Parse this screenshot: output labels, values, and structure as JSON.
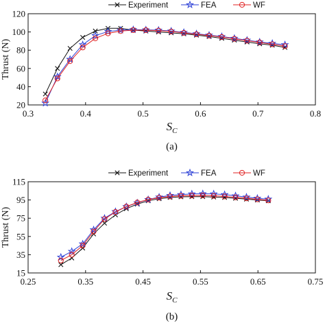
{
  "chart_data": [
    {
      "type": "line",
      "caption": "(a)",
      "xlabel": "S",
      "xlabel_sub": "C",
      "ylabel": "Thrust (N)",
      "xlim": [
        0.3,
        0.8
      ],
      "ylim": [
        20,
        120
      ],
      "xticks": [
        "0.3",
        "0.4",
        "0.5",
        "0.6",
        "0.7",
        "0.8"
      ],
      "yticks": [
        "20",
        "40",
        "60",
        "80",
        "100",
        "120"
      ],
      "legend_position": "top-center",
      "grid": false,
      "series": [
        {
          "name": "Experiment",
          "color": "#111111",
          "marker": "x",
          "x": [
            0.33,
            0.351,
            0.373,
            0.395,
            0.417,
            0.439,
            0.461,
            0.483,
            0.505,
            0.527,
            0.549,
            0.571,
            0.593,
            0.615,
            0.637,
            0.659,
            0.681,
            0.703,
            0.725,
            0.747
          ],
          "y": [
            32,
            60,
            82,
            94,
            101,
            104,
            104,
            102,
            101,
            100,
            99,
            98,
            96.5,
            95,
            93,
            91,
            89,
            87,
            85.5,
            83
          ]
        },
        {
          "name": "FEA",
          "color": "#2b3fd6",
          "marker": "star",
          "x": [
            0.33,
            0.351,
            0.373,
            0.395,
            0.417,
            0.439,
            0.461,
            0.483,
            0.505,
            0.527,
            0.549,
            0.571,
            0.593,
            0.615,
            0.637,
            0.659,
            0.681,
            0.703,
            0.725,
            0.747
          ],
          "y": [
            22,
            51,
            70,
            86,
            96,
            100.5,
            102,
            102.5,
            102.3,
            102,
            101,
            99.5,
            98,
            96.5,
            95,
            93,
            91,
            89,
            87.5,
            86
          ]
        },
        {
          "name": "WF",
          "color": "#e02020",
          "marker": "circle",
          "x": [
            0.33,
            0.351,
            0.373,
            0.395,
            0.417,
            0.439,
            0.461,
            0.483,
            0.505,
            0.527,
            0.549,
            0.571,
            0.593,
            0.615,
            0.637,
            0.659,
            0.681,
            0.703,
            0.725,
            0.747
          ],
          "y": [
            25,
            49,
            68,
            83,
            93,
            98.5,
            101,
            102,
            102,
            101.5,
            100.5,
            99,
            97.5,
            96,
            94.5,
            92.5,
            90.5,
            88.5,
            86.5,
            84.5
          ]
        }
      ]
    },
    {
      "type": "line",
      "caption": "(b)",
      "xlabel": "S",
      "xlabel_sub": "C",
      "ylabel": "Thrust (N)",
      "xlim": [
        0.25,
        0.75
      ],
      "ylim": [
        15,
        125
      ],
      "xticks": [
        "0.25",
        "0.35",
        "0.45",
        "0.55",
        "0.65",
        "0.75"
      ],
      "yticks": [
        "15",
        "35",
        "55",
        "75",
        "95",
        "115"
      ],
      "legend_position": "top-center",
      "grid": false,
      "series": [
        {
          "name": "Experiment",
          "color": "#111111",
          "marker": "x",
          "x": [
            0.307,
            0.326,
            0.345,
            0.364,
            0.383,
            0.402,
            0.421,
            0.44,
            0.459,
            0.478,
            0.497,
            0.516,
            0.535,
            0.554,
            0.573,
            0.592,
            0.611,
            0.63,
            0.649,
            0.668
          ],
          "y": [
            25,
            33,
            45,
            62,
            75,
            85,
            92.5,
            98,
            102,
            104.5,
            106,
            106.8,
            107,
            107,
            106.5,
            106,
            105,
            104,
            103,
            102
          ]
        },
        {
          "name": "FEA",
          "color": "#2b3fd6",
          "marker": "star",
          "x": [
            0.307,
            0.326,
            0.345,
            0.364,
            0.383,
            0.402,
            0.421,
            0.44,
            0.459,
            0.478,
            0.497,
            0.516,
            0.535,
            0.554,
            0.573,
            0.592,
            0.611,
            0.63,
            0.649,
            0.668
          ],
          "y": [
            34,
            41,
            50,
            67,
            81,
            89,
            95,
            99.5,
            103.5,
            106.5,
            108.5,
            109.5,
            110.3,
            110.5,
            110.3,
            109.5,
            108,
            106.5,
            105,
            104
          ]
        },
        {
          "name": "WF",
          "color": "#e02020",
          "marker": "circle",
          "x": [
            0.307,
            0.326,
            0.345,
            0.364,
            0.383,
            0.402,
            0.421,
            0.44,
            0.459,
            0.478,
            0.497,
            0.516,
            0.535,
            0.554,
            0.573,
            0.592,
            0.611,
            0.63,
            0.649,
            0.668
          ],
          "y": [
            30,
            37,
            48,
            65,
            80,
            88.5,
            95,
            100,
            103.5,
            105.8,
            107.2,
            108,
            108.4,
            108.5,
            108,
            107.3,
            106.2,
            105,
            103.8,
            102.5
          ]
        }
      ]
    }
  ]
}
